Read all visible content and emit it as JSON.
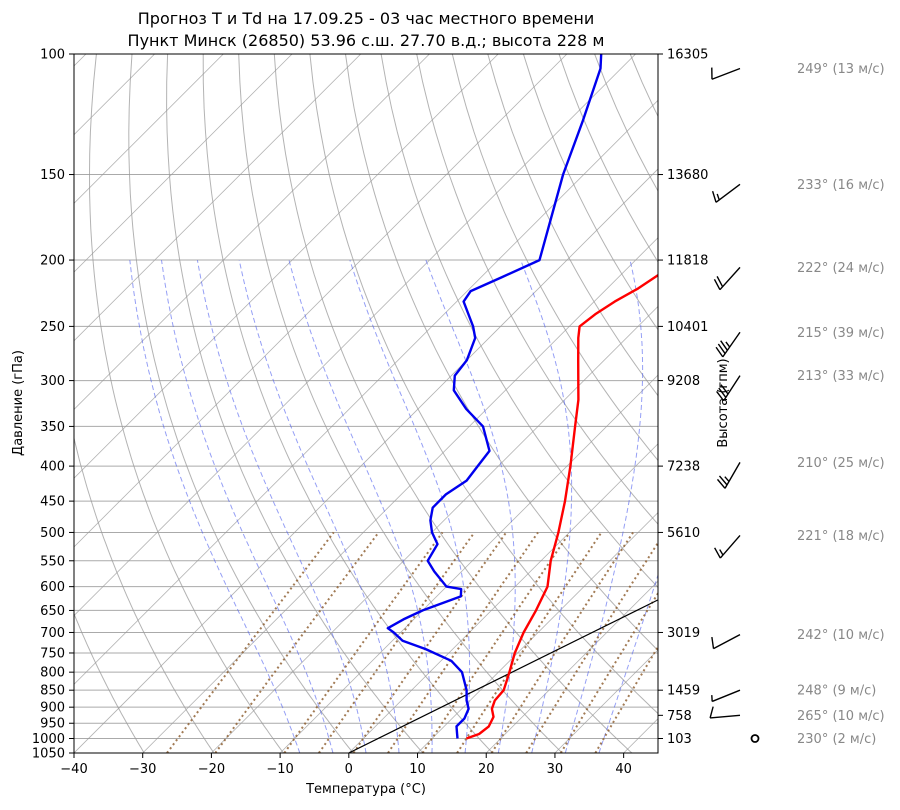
{
  "chart_data": {
    "type": "line",
    "title_line1": "Прогноз T и Td на 17.09.25 - 03 час местного времени",
    "title_line2": "Пункт Минск (26850) 53.96 с.ш. 27.70 в.д.; высота 228 м",
    "xlabel": "Температура (°C)",
    "ylabel": "Давление (гПа)",
    "ylabel_right": "Высота (гпм)",
    "xlim": [
      -40,
      45
    ],
    "ylim": [
      1050,
      100
    ],
    "yscale": "log",
    "x_ticks": [
      -40,
      -30,
      -20,
      -10,
      0,
      10,
      20,
      30,
      40
    ],
    "y_ticks": [
      100,
      150,
      200,
      250,
      300,
      350,
      400,
      450,
      500,
      550,
      600,
      650,
      700,
      750,
      800,
      850,
      900,
      950,
      1000,
      1050
    ],
    "height_ticks": [
      {
        "p": 100,
        "label": "16305"
      },
      {
        "p": 150,
        "label": "13680"
      },
      {
        "p": 200,
        "label": "11818"
      },
      {
        "p": 250,
        "label": "10401"
      },
      {
        "p": 300,
        "label": "9208"
      },
      {
        "p": 400,
        "label": "7238"
      },
      {
        "p": 500,
        "label": "5610"
      },
      {
        "p": 700,
        "label": "3019"
      },
      {
        "p": 850,
        "label": "1459"
      },
      {
        "p": 925,
        "label": "758"
      },
      {
        "p": 1000,
        "label": "103"
      }
    ],
    "series": [
      {
        "name": "T",
        "color": "#ff0000",
        "points": [
          {
            "p": 1000,
            "t": 15.0
          },
          {
            "p": 985,
            "t": 16.2
          },
          {
            "p": 960,
            "t": 16.5
          },
          {
            "p": 930,
            "t": 15.8
          },
          {
            "p": 905,
            "t": 14.4
          },
          {
            "p": 880,
            "t": 13.6
          },
          {
            "p": 850,
            "t": 13.4
          },
          {
            "p": 800,
            "t": 11.6
          },
          {
            "p": 750,
            "t": 9.6
          },
          {
            "p": 700,
            "t": 7.9
          },
          {
            "p": 650,
            "t": 6.5
          },
          {
            "p": 600,
            "t": 4.7
          },
          {
            "p": 550,
            "t": 1.4
          },
          {
            "p": 500,
            "t": -1.6
          },
          {
            "p": 450,
            "t": -5.2
          },
          {
            "p": 400,
            "t": -9.5
          },
          {
            "p": 350,
            "t": -14.6
          },
          {
            "p": 320,
            "t": -18.0
          },
          {
            "p": 300,
            "t": -20.8
          },
          {
            "p": 280,
            "t": -23.8
          },
          {
            "p": 260,
            "t": -27.0
          },
          {
            "p": 250,
            "t": -28.5
          },
          {
            "p": 240,
            "t": -28.0
          },
          {
            "p": 230,
            "t": -27.0
          },
          {
            "p": 220,
            "t": -25.5
          },
          {
            "p": 210,
            "t": -24.5
          },
          {
            "p": 200,
            "t": -24.0
          },
          {
            "p": 170,
            "t": -24.0
          },
          {
            "p": 150,
            "t": -24.3
          },
          {
            "p": 130,
            "t": -24.5
          },
          {
            "p": 112,
            "t": -24.0
          }
        ]
      },
      {
        "name": "Td",
        "color": "#0000ee",
        "points": [
          {
            "p": 1000,
            "t": 13.7
          },
          {
            "p": 985,
            "t": 13.0
          },
          {
            "p": 960,
            "t": 11.8
          },
          {
            "p": 935,
            "t": 11.8
          },
          {
            "p": 905,
            "t": 11.0
          },
          {
            "p": 880,
            "t": 9.5
          },
          {
            "p": 850,
            "t": 8.0
          },
          {
            "p": 800,
            "t": 4.7
          },
          {
            "p": 770,
            "t": 1.5
          },
          {
            "p": 740,
            "t": -4.0
          },
          {
            "p": 720,
            "t": -8.5
          },
          {
            "p": 700,
            "t": -11.0
          },
          {
            "p": 690,
            "t": -12.5
          },
          {
            "p": 670,
            "t": -11.5
          },
          {
            "p": 650,
            "t": -10.0
          },
          {
            "p": 620,
            "t": -6.5
          },
          {
            "p": 605,
            "t": -7.5
          },
          {
            "p": 600,
            "t": -10.0
          },
          {
            "p": 570,
            "t": -14.0
          },
          {
            "p": 550,
            "t": -16.5
          },
          {
            "p": 520,
            "t": -17.5
          },
          {
            "p": 500,
            "t": -20.0
          },
          {
            "p": 480,
            "t": -22.0
          },
          {
            "p": 460,
            "t": -23.5
          },
          {
            "p": 440,
            "t": -23.5
          },
          {
            "p": 420,
            "t": -22.5
          },
          {
            "p": 400,
            "t": -23.0
          },
          {
            "p": 380,
            "t": -23.5
          },
          {
            "p": 350,
            "t": -28.0
          },
          {
            "p": 330,
            "t": -33.0
          },
          {
            "p": 310,
            "t": -37.5
          },
          {
            "p": 295,
            "t": -39.5
          },
          {
            "p": 280,
            "t": -40.0
          },
          {
            "p": 260,
            "t": -42.0
          },
          {
            "p": 250,
            "t": -44.0
          },
          {
            "p": 230,
            "t": -49.0
          },
          {
            "p": 222,
            "t": -49.5
          },
          {
            "p": 212,
            "t": -47.0
          },
          {
            "p": 200,
            "t": -44.0
          },
          {
            "p": 150,
            "t": -53.0
          },
          {
            "p": 125,
            "t": -58.0
          },
          {
            "p": 105,
            "t": -63.0
          },
          {
            "p": 100,
            "t": -65.0
          }
        ]
      }
    ],
    "parcel_line": [
      {
        "p": 1050,
        "t": 0
      },
      {
        "p": 370,
        "t": 46
      }
    ],
    "isotherm_start": -160,
    "isotherm_end": 40,
    "isotherm_step": 10,
    "dry_adiabat_thetas_k": [
      240,
      250,
      260,
      270,
      280,
      290,
      300,
      310,
      320,
      330,
      340,
      350,
      360,
      370,
      380,
      390,
      400,
      410,
      420,
      430,
      440,
      450,
      460,
      470,
      480,
      490,
      500
    ],
    "moist_adiabat_t1000_c": [
      -10,
      -5,
      0,
      5,
      10,
      15,
      20,
      25,
      30,
      35
    ],
    "mixing_ratio_start_t": [
      -27,
      -20,
      -10,
      -5,
      0,
      5,
      10,
      15,
      20,
      25,
      30,
      35
    ],
    "wind": [
      {
        "p": 105,
        "dir": 249,
        "spd": 13,
        "label": "249° (13 м/с)"
      },
      {
        "p": 155,
        "dir": 233,
        "spd": 16,
        "label": "233° (16 м/с)"
      },
      {
        "p": 205,
        "dir": 222,
        "spd": 24,
        "label": "222° (24 м/с)"
      },
      {
        "p": 255,
        "dir": 215,
        "spd": 39,
        "label": "215° (39 м/с)"
      },
      {
        "p": 295,
        "dir": 213,
        "spd": 33,
        "label": "213° (33 м/с)"
      },
      {
        "p": 395,
        "dir": 210,
        "spd": 25,
        "label": "210° (25 м/с)"
      },
      {
        "p": 505,
        "dir": 221,
        "spd": 18,
        "label": "221° (18 м/с)"
      },
      {
        "p": 705,
        "dir": 242,
        "spd": 10,
        "label": "242° (10 м/с)"
      },
      {
        "p": 850,
        "dir": 248,
        "spd": 9,
        "label": "248° (9 м/с)"
      },
      {
        "p": 925,
        "dir": 265,
        "spd": 10,
        "label": "265° (10 м/с)"
      },
      {
        "p": 1000,
        "dir": 230,
        "spd": 2,
        "label": "230° (2 м/с)"
      }
    ],
    "colors": {
      "T": "#ff0000",
      "Td": "#0000ee",
      "dry_adiabats": "#999999",
      "moist_adiabats": "#4f5fef",
      "mixing_ratio": "#8b5a2b",
      "isobars": "#aaaaaa",
      "wind_label": "#888888"
    }
  }
}
